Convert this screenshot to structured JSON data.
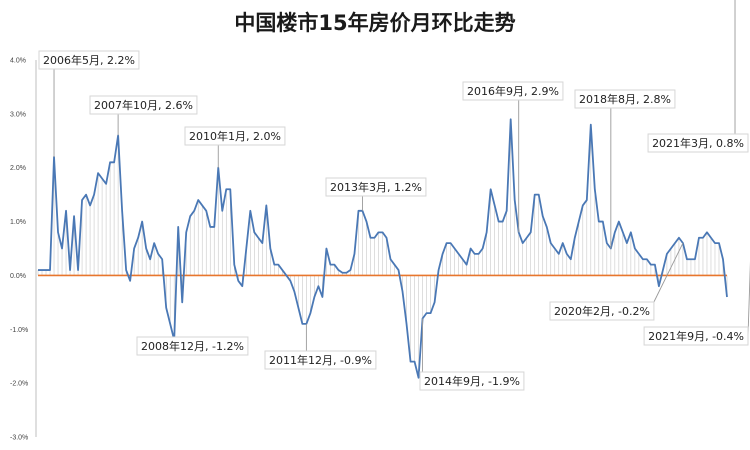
{
  "chart_data": {
    "type": "line",
    "title": "中国楼市15年房价月环比走势",
    "xlabel": "",
    "ylabel": "",
    "ylim": [
      -3.0,
      4.0
    ],
    "yticks": [
      "4.0%",
      "3.0%",
      "2.0%",
      "1.0%",
      "0.0%",
      "-1.0%",
      "-2.0%",
      "-3.0%"
    ],
    "grid": false,
    "legend": "none",
    "colors": {
      "line": "#4a78b5",
      "zero_line": "#e8762d",
      "fill": "#c8c8c8"
    },
    "x_start": "2006-01",
    "series": [
      {
        "values": [
          0.1,
          0.1,
          0.1,
          0.1,
          2.2,
          0.8,
          0.5,
          1.2,
          0.1,
          1.1,
          0.1,
          1.4,
          1.5,
          1.3,
          1.5,
          1.9,
          1.8,
          1.7,
          2.1,
          2.1,
          2.6,
          1.2,
          0.1,
          -0.1,
          0.5,
          0.7,
          1.0,
          0.5,
          0.3,
          0.6,
          0.4,
          0.3,
          -0.6,
          -0.9,
          -1.2,
          0.9,
          -0.5,
          0.8,
          1.1,
          1.2,
          1.4,
          1.3,
          1.2,
          0.9,
          0.9,
          2.0,
          1.2,
          1.6,
          1.6,
          0.2,
          -0.1,
          -0.2,
          0.5,
          1.2,
          0.8,
          0.7,
          0.6,
          1.3,
          0.5,
          0.2,
          0.2,
          0.1,
          0.0,
          -0.1,
          -0.3,
          -0.6,
          -0.9,
          -0.9,
          -0.7,
          -0.4,
          -0.2,
          -0.4,
          0.5,
          0.2,
          0.2,
          0.1,
          0.05,
          0.05,
          0.1,
          0.4,
          1.2,
          1.2,
          1.0,
          0.7,
          0.7,
          0.8,
          0.8,
          0.7,
          0.3,
          0.2,
          0.1,
          -0.3,
          -0.9,
          -1.6,
          -1.6,
          -1.9,
          -0.8,
          -0.7,
          -0.7,
          -0.5,
          0.1,
          0.4,
          0.6,
          0.6,
          0.5,
          0.4,
          0.3,
          0.2,
          0.5,
          0.4,
          0.4,
          0.5,
          0.8,
          1.6,
          1.3,
          1.0,
          1.0,
          1.2,
          2.9,
          1.4,
          0.8,
          0.6,
          0.7,
          0.8,
          1.5,
          1.5,
          1.1,
          0.9,
          0.6,
          0.5,
          0.4,
          0.6,
          0.4,
          0.3,
          0.7,
          1.0,
          1.3,
          1.4,
          2.8,
          1.6,
          1.0,
          1.0,
          0.6,
          0.5,
          0.8,
          1.0,
          0.8,
          0.6,
          0.8,
          0.5,
          0.4,
          0.3,
          0.3,
          0.2,
          0.2,
          -0.2,
          0.1,
          0.4,
          0.5,
          0.6,
          0.7,
          0.6,
          0.3,
          0.3,
          0.3,
          0.7,
          0.7,
          0.8,
          0.7,
          0.6,
          0.6,
          0.3,
          -0.4
        ]
      }
    ],
    "annotations": [
      {
        "index": 4,
        "label": "2006年5月, 2.2%"
      },
      {
        "index": 20,
        "label": "2007年10月, 2.6%"
      },
      {
        "index": 34,
        "label": "2008年12月, -1.2%"
      },
      {
        "index": 45,
        "label": "2010年1月, 2.0%"
      },
      {
        "index": 67,
        "label": "2011年12月, -0.9%"
      },
      {
        "index": 81,
        "label": "2013年3月, 1.2%"
      },
      {
        "index": 96,
        "label": "2014年9月, -1.9%"
      },
      {
        "index": 120,
        "label": "2016年9月, 2.9%"
      },
      {
        "index": 143,
        "label": "2018年8月, 2.8%"
      },
      {
        "index": 161,
        "label": "2020年2月, -0.2%"
      },
      {
        "index": 174,
        "label": "2021年3月, 0.8%"
      },
      {
        "index": 180,
        "label": "2021年9月, -0.4%"
      }
    ]
  }
}
